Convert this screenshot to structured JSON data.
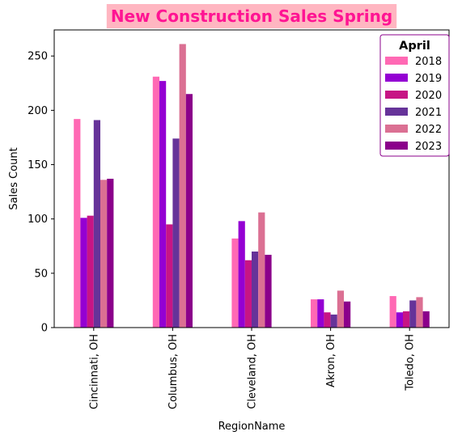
{
  "chart_data": {
    "type": "bar",
    "title": "New Construction Sales Spring",
    "xlabel": "RegionName",
    "ylabel": "Sales Count",
    "ylim": [
      0,
      274
    ],
    "yticks": [
      0,
      50,
      100,
      150,
      200,
      250
    ],
    "grid": false,
    "legend": {
      "title": "April",
      "placement": "top-right"
    },
    "categories": [
      "Cincinnati, OH",
      "Columbus, OH",
      "Cleveland, OH",
      "Akron, OH",
      "Toledo, OH"
    ],
    "series": [
      {
        "name": "2018",
        "color": "#ff69b4",
        "values": [
          192,
          231,
          82,
          26,
          29
        ]
      },
      {
        "name": "2019",
        "color": "#9400d3",
        "values": [
          101,
          227,
          98,
          26,
          14
        ]
      },
      {
        "name": "2020",
        "color": "#c71585",
        "values": [
          103,
          95,
          62,
          14,
          15
        ]
      },
      {
        "name": "2021",
        "color": "#663399",
        "values": [
          191,
          174,
          70,
          12,
          25
        ]
      },
      {
        "name": "2022",
        "color": "#db7093",
        "values": [
          136,
          261,
          106,
          34,
          28
        ]
      },
      {
        "name": "2023",
        "color": "#8b008b",
        "values": [
          137,
          215,
          67,
          24,
          15
        ]
      }
    ],
    "colors": {
      "title_text": "#ff1493",
      "title_background": "#ffb6c1",
      "legend_border": "#8b008b"
    }
  }
}
